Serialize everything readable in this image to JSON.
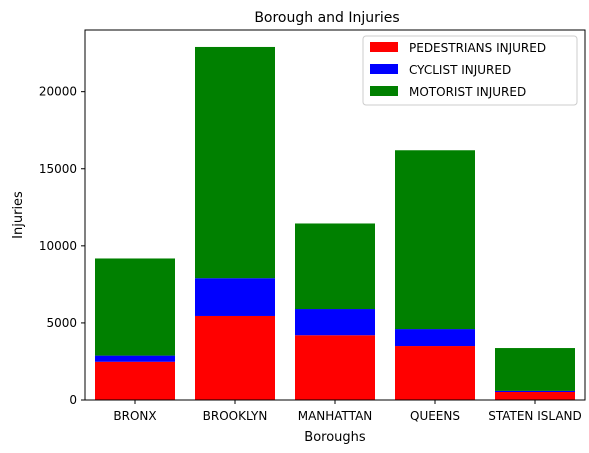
{
  "chart_data": {
    "type": "bar",
    "stacked": true,
    "title": "Borough and Injuries",
    "xlabel": "Boroughs",
    "ylabel": "Injuries",
    "categories": [
      "BRONX",
      "BROOKLYN",
      "MANHATTAN",
      "QUEENS",
      "STATEN ISLAND"
    ],
    "series": [
      {
        "name": "PEDESTRIANS INJURED",
        "color": "#ff0000",
        "values": [
          2480,
          5450,
          4200,
          3500,
          520
        ]
      },
      {
        "name": "CYCLIST INJURED",
        "color": "#0000ff",
        "values": [
          400,
          2450,
          1700,
          1100,
          70
        ]
      },
      {
        "name": "MOTORIST INJURED",
        "color": "#008000",
        "values": [
          6300,
          15000,
          5550,
          11600,
          2780
        ]
      }
    ],
    "ylim": [
      0,
      24000
    ],
    "yticks": [
      0,
      5000,
      10000,
      15000,
      20000
    ],
    "ytick_labels": [
      "0",
      "5000",
      "10000",
      "15000",
      "20000"
    ],
    "grid": false,
    "legend_position": "top-right"
  }
}
